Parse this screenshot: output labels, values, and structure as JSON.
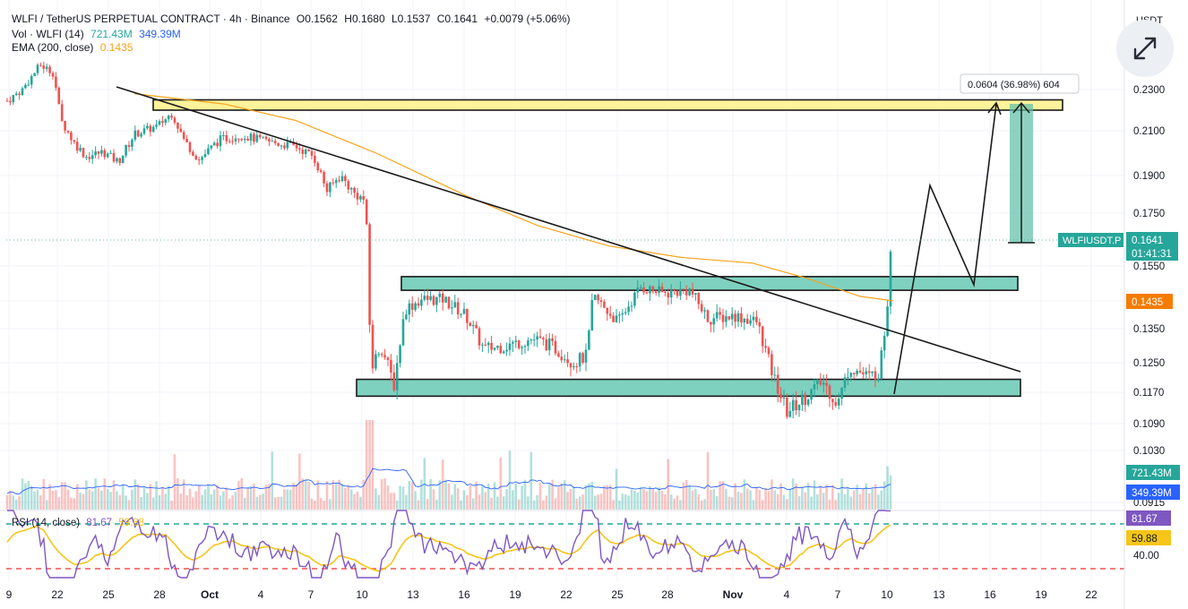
{
  "header": {
    "title": "WLFI / TetherUS PERPETUAL CONTRACT · 4h · Binance",
    "open": "O0.1562",
    "high": "H0.1680",
    "low": "L0.1537",
    "close": "C0.1641",
    "change": "+0.0079 (+5.06%)",
    "vol_label": "Vol · WLFI (14)",
    "vol_value": "721.43M",
    "vol_ma": "349.39M",
    "ema_label": "EMA (200, close)",
    "ema_value": "0.1435",
    "rsi_label": "RSI (14, close)",
    "rsi_value": "81.67",
    "rsi_ma": "59.88"
  },
  "axis": {
    "currency": "USDT",
    "price_ticks": [
      "0.2300",
      "0.2100",
      "0.1900",
      "0.1750",
      "0.1550",
      "0.1435",
      "0.1350",
      "0.1250",
      "0.1170",
      "0.1090",
      "0.1030",
      "0.0915"
    ],
    "rsi_ticks": [
      "40.00"
    ],
    "date_ticks": [
      "9",
      "22",
      "25",
      "28",
      "Oct",
      "4",
      "7",
      "10",
      "13",
      "16",
      "19",
      "22",
      "25",
      "28",
      "Nov",
      "4",
      "7",
      "10",
      "13",
      "16",
      "19",
      "22"
    ]
  },
  "labels": {
    "symbol": "WLFIUSDT.P",
    "last_price": "0.1641",
    "countdown": "01:41:31",
    "ema_badge": "0.1435",
    "vol_badge": "721.43M",
    "vol_ma_badge": "349.39M",
    "rsi_badge": "81.67",
    "rsi_ma_badge": "59.88",
    "measure": "0.0604 (36.98%) 604"
  },
  "colors": {
    "up": "#26a69a",
    "down": "#ef5350",
    "ema": "#f7a21b",
    "rsi": "#7e57c2",
    "rsi_ma": "#f5c518",
    "supply_zone": "#fcf39a",
    "demand_zone": "#7fd1bf"
  },
  "chart_data": {
    "type": "candlestick",
    "x_range": [
      "9 Sep",
      "22 Nov"
    ],
    "y_range": [
      0.0915,
      0.24
    ],
    "last": 0.1641,
    "ema_200": 0.1435,
    "zones": [
      {
        "type": "resistance",
        "from": 0.22,
        "to": 0.225
      },
      {
        "type": "support-resistance",
        "from": 0.147,
        "to": 0.1515
      },
      {
        "type": "support",
        "from": 0.116,
        "to": 0.1205
      }
    ],
    "trendline": {
      "from": 0.23,
      "to": 0.122
    },
    "measure": {
      "value": 0.0604,
      "pct": 36.98,
      "bars": 604
    },
    "indicators": {
      "volume": {
        "value": "721.43M",
        "ma": "349.39M"
      },
      "rsi": {
        "value": 81.67,
        "ma": 59.88,
        "levels": [
          70,
          30
        ]
      }
    }
  }
}
